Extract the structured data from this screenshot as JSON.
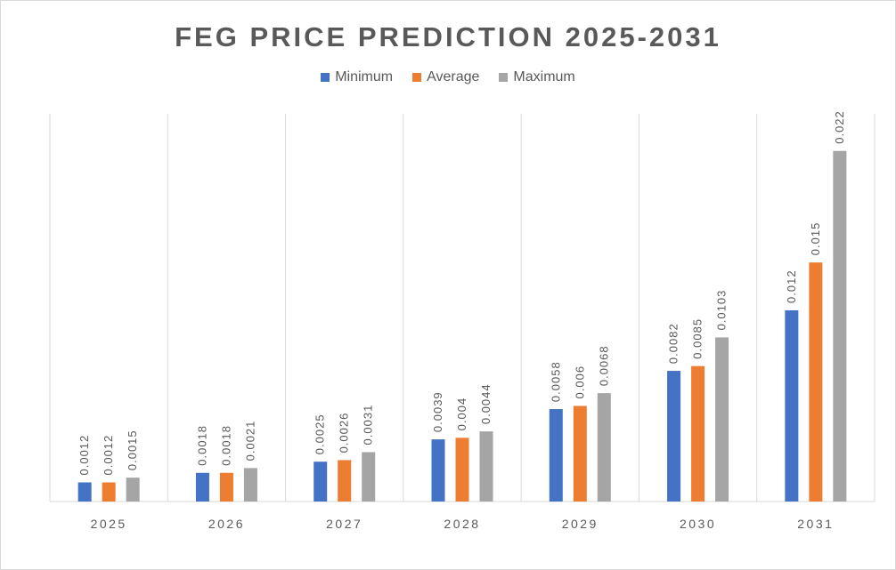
{
  "chart_data": {
    "type": "bar",
    "title": "FEG PRICE PREDICTION 2025-2031",
    "categories": [
      "2025",
      "2026",
      "2027",
      "2028",
      "2029",
      "2030",
      "2031"
    ],
    "series": [
      {
        "name": "Minimum",
        "color": "#4472c4",
        "values": [
          0.0012,
          0.0018,
          0.0025,
          0.0039,
          0.0058,
          0.0082,
          0.012
        ]
      },
      {
        "name": "Average",
        "color": "#ed7d31",
        "values": [
          0.0012,
          0.0018,
          0.0026,
          0.004,
          0.006,
          0.0085,
          0.015
        ]
      },
      {
        "name": "Maximum",
        "color": "#a5a5a5",
        "values": [
          0.0015,
          0.0021,
          0.0031,
          0.0044,
          0.0068,
          0.0103,
          0.022
        ]
      }
    ],
    "ylim": [
      0,
      0.025
    ],
    "legend_position": "top",
    "vertical_category_separators": true,
    "data_labels": "rotated-vertical"
  }
}
